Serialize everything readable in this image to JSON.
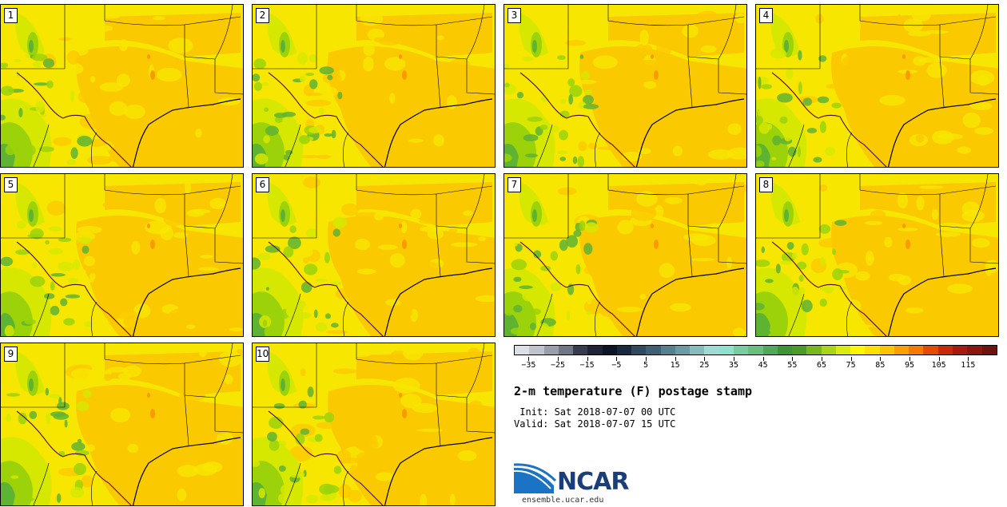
{
  "panels": [
    {
      "label": "1"
    },
    {
      "label": "2"
    },
    {
      "label": "3"
    },
    {
      "label": "4"
    },
    {
      "label": "5"
    },
    {
      "label": "6"
    },
    {
      "label": "7"
    },
    {
      "label": "8"
    },
    {
      "label": "9"
    },
    {
      "label": "10"
    }
  ],
  "map_colors": {
    "base": "#f7e600",
    "warm": "#fbc900",
    "hot": "#fa9a00",
    "mild": "#d6e800",
    "cool": "#9bd20a",
    "cooler": "#5fb332",
    "coolest": "#3a8f2c",
    "border": "#000000",
    "river": "#c0392b"
  },
  "colorbar": {
    "colors": [
      "#dcdfe6",
      "#bfc4cd",
      "#979fab",
      "#6f7786",
      "#343c4e",
      "#1c2435",
      "#0c1526",
      "#1b2940",
      "#2f4a60",
      "#3f5f75",
      "#55808e",
      "#6a9aa3",
      "#86bcbc",
      "#9fdad4",
      "#8fe0cd",
      "#78cca0",
      "#68bf7e",
      "#52a85a",
      "#3c9435",
      "#4a9a2a",
      "#78b81c",
      "#a9d417",
      "#d9ec10",
      "#fff700",
      "#fde000",
      "#fbc400",
      "#fa9f00",
      "#f67a00",
      "#e44b00",
      "#c72a0a",
      "#a61a10",
      "#8a160f",
      "#6e140e"
    ],
    "ticks": [
      "−35",
      "−25",
      "−15",
      "−5",
      "5",
      "15",
      "25",
      "35",
      "45",
      "55",
      "65",
      "75",
      "85",
      "95",
      "105",
      "115"
    ]
  },
  "title": "2-m temperature (F) postage stamp",
  "init": " Init: Sat 2018-07-07 00 UTC",
  "valid": "Valid: Sat 2018-07-07 15 UTC",
  "logo": {
    "text": "NCAR",
    "url": "ensemble.ucar.edu",
    "color": "#1b3e78",
    "swoosh_color": "#1a73c4"
  }
}
